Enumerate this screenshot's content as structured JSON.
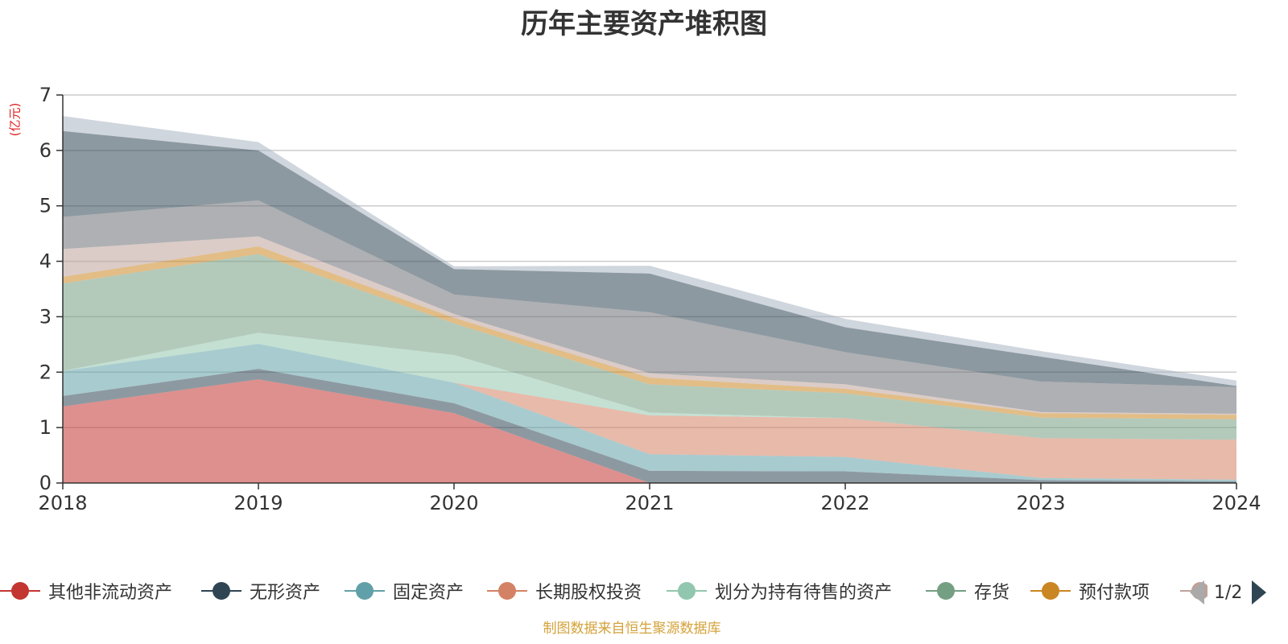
{
  "chart_data": {
    "type": "area",
    "title": "历年主要资产堆积图",
    "ylabel": "(亿元)",
    "x": [
      "2018",
      "2019",
      "2020",
      "2021",
      "2022",
      "2023",
      "2024"
    ],
    "ylim": [
      0,
      7
    ],
    "yticks": [
      0,
      1,
      2,
      3,
      4,
      5,
      6,
      7
    ],
    "stacked": true,
    "grid": true,
    "legend_position": "bottom",
    "series": [
      {
        "name": "其他非流动资产",
        "color": "#c23531",
        "values": [
          1.38,
          1.87,
          1.26,
          0.0,
          0.0,
          0.0,
          0.0
        ]
      },
      {
        "name": "无形资产",
        "color": "#2f4554",
        "values": [
          0.19,
          0.19,
          0.18,
          0.22,
          0.21,
          0.05,
          0.03
        ]
      },
      {
        "name": "固定资产",
        "color": "#61a0a8",
        "values": [
          0.45,
          0.45,
          0.37,
          0.3,
          0.26,
          0.04,
          0.03
        ]
      },
      {
        "name": "长期股权投资",
        "color": "#d48265",
        "values": [
          0.0,
          0.0,
          0.0,
          0.7,
          0.7,
          0.72,
          0.72
        ]
      },
      {
        "name": "划分为持有待售的资产",
        "color": "#91c7ae",
        "values": [
          0.0,
          0.2,
          0.5,
          0.05,
          0.0,
          0.0,
          0.0
        ]
      },
      {
        "name": "存货",
        "color": "#749f83",
        "values": [
          1.58,
          1.42,
          0.57,
          0.51,
          0.45,
          0.37,
          0.37
        ]
      },
      {
        "name": "预付款项",
        "color": "#ca8622",
        "values": [
          0.12,
          0.14,
          0.1,
          0.12,
          0.08,
          0.08,
          0.08
        ]
      },
      {
        "name": "",
        "color": "#bda29a",
        "values": [
          0.5,
          0.18,
          0.07,
          0.08,
          0.08,
          0.02,
          0.02
        ]
      },
      {
        "name": "",
        "color": "#6e7074",
        "values": [
          0.58,
          0.65,
          0.35,
          1.1,
          0.58,
          0.55,
          0.48
        ]
      },
      {
        "name": "",
        "color": "#2f4554",
        "values": [
          1.55,
          0.9,
          0.46,
          0.7,
          0.45,
          0.45,
          0.02
        ]
      },
      {
        "name": "",
        "color": "#aab4c2",
        "values": [
          0.27,
          0.15,
          0.05,
          0.14,
          0.15,
          0.1,
          0.1
        ]
      }
    ]
  },
  "legend": {
    "items": [
      {
        "label": "其他非流动资产",
        "color": "#c23531"
      },
      {
        "label": "无形资产",
        "color": "#2f4554"
      },
      {
        "label": "固定资产",
        "color": "#61a0a8"
      },
      {
        "label": "长期股权投资",
        "color": "#d48265"
      },
      {
        "label": "划分为持有待售的资产",
        "color": "#91c7ae"
      },
      {
        "label": "存货",
        "color": "#749f83"
      },
      {
        "label": "预付款项",
        "color": "#ca8622"
      },
      {
        "label": "",
        "color": "#bda29a"
      }
    ],
    "page_text": "1/2"
  },
  "source_text": "制图数据来自恒生聚源数据库"
}
